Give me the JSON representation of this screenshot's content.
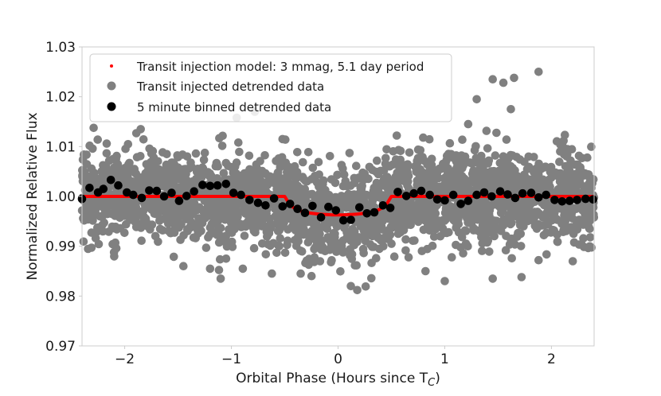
{
  "chart_data": {
    "type": "scatter",
    "title": "",
    "xlabel": "Orbital Phase (Hours since T",
    "xlabel_subscript": "C",
    "xlabel_suffix": ")",
    "ylabel": "Normalized Relative Flux",
    "xlim": [
      -2.4,
      2.4
    ],
    "ylim": [
      0.97,
      1.03
    ],
    "grid": false,
    "legend_position": "top-left",
    "x_ticks": [
      -2,
      -1,
      0,
      1,
      2
    ],
    "x_tick_labels": [
      "−2",
      "−1",
      "0",
      "1",
      "2"
    ],
    "y_ticks": [
      0.97,
      0.98,
      0.99,
      1.0,
      1.01,
      1.02,
      1.03
    ],
    "y_tick_labels": [
      "0.97",
      "0.98",
      "0.99",
      "1.00",
      "1.01",
      "1.02",
      "1.03"
    ],
    "series": [
      {
        "name": "Transit injection model: 3 mmag, 5.1 day period",
        "kind": "model-line",
        "color": "#ff0000",
        "x": [
          -2.4,
          -0.5,
          -0.46,
          -0.42,
          -0.38,
          -0.34,
          -0.3,
          -0.26,
          -0.22,
          -0.18,
          -0.14,
          -0.1,
          -0.05,
          0.0,
          0.05,
          0.1,
          0.14,
          0.18,
          0.22,
          0.26,
          0.3,
          0.34,
          0.38,
          0.42,
          0.46,
          0.5,
          2.4
        ],
        "y": [
          1.0,
          1.0,
          0.9986,
          0.9978,
          0.9973,
          0.997,
          0.9968,
          0.99665,
          0.99655,
          0.99645,
          0.9964,
          0.99635,
          0.9963,
          0.9963,
          0.9963,
          0.99635,
          0.9964,
          0.99645,
          0.99655,
          0.99665,
          0.9968,
          0.997,
          0.9973,
          0.9978,
          0.9986,
          1.0,
          1.0
        ]
      },
      {
        "name": "Transit injected detrended data",
        "kind": "scatter-cloud",
        "color": "#808080",
        "n_points": 2600,
        "noise_sd": 0.0045,
        "outliers": [
          {
            "x": 1.45,
            "y": 1.0235
          },
          {
            "x": 1.55,
            "y": 1.0228
          },
          {
            "x": 1.65,
            "y": 1.0238
          },
          {
            "x": 1.88,
            "y": 1.025
          },
          {
            "x": 1.3,
            "y": 1.0195
          },
          {
            "x": 1.62,
            "y": 1.0175
          },
          {
            "x": 1.22,
            "y": 1.0145
          },
          {
            "x": -0.95,
            "y": 1.0158
          },
          {
            "x": -0.78,
            "y": 1.017
          },
          {
            "x": -1.85,
            "y": 1.0135
          },
          {
            "x": -0.52,
            "y": 1.0115
          },
          {
            "x": 0.55,
            "y": 1.0122
          },
          {
            "x": 2.15,
            "y": 1.0095
          },
          {
            "x": -1.2,
            "y": 0.9855
          },
          {
            "x": -1.1,
            "y": 0.9835
          },
          {
            "x": -0.62,
            "y": 0.9845
          },
          {
            "x": 0.12,
            "y": 0.982
          },
          {
            "x": 0.18,
            "y": 0.9812
          },
          {
            "x": 1.0,
            "y": 0.983
          },
          {
            "x": 1.45,
            "y": 0.9835
          },
          {
            "x": 1.72,
            "y": 0.9838
          },
          {
            "x": 1.88,
            "y": 0.9872
          },
          {
            "x": -1.45,
            "y": 0.986
          },
          {
            "x": -2.1,
            "y": 0.9888
          },
          {
            "x": 2.2,
            "y": 0.987
          },
          {
            "x": 0.82,
            "y": 0.985
          },
          {
            "x": -0.35,
            "y": 0.9845
          }
        ]
      },
      {
        "name": "5 minute binned detrended data",
        "kind": "scatter",
        "color": "#000000",
        "x": [
          -2.4,
          -2.33,
          -2.25,
          -2.2,
          -2.13,
          -2.06,
          -1.98,
          -1.92,
          -1.84,
          -1.77,
          -1.7,
          -1.63,
          -1.56,
          -1.49,
          -1.42,
          -1.35,
          -1.27,
          -1.2,
          -1.13,
          -1.05,
          -0.98,
          -0.91,
          -0.83,
          -0.75,
          -0.68,
          -0.6,
          -0.52,
          -0.45,
          -0.38,
          -0.31,
          -0.24,
          -0.16,
          -0.09,
          -0.02,
          0.05,
          0.12,
          0.2,
          0.27,
          0.34,
          0.42,
          0.49,
          0.56,
          0.64,
          0.71,
          0.78,
          0.86,
          0.93,
          1.0,
          1.08,
          1.15,
          1.22,
          1.3,
          1.37,
          1.44,
          1.52,
          1.59,
          1.66,
          1.73,
          1.81,
          1.88,
          1.95,
          2.03,
          2.1,
          2.17,
          2.24,
          2.32,
          2.39
        ],
        "y": [
          0.9995,
          1.0017,
          1.0008,
          1.0015,
          1.0033,
          1.0022,
          1.0008,
          1.0003,
          0.9997,
          1.0012,
          1.0011,
          1.0,
          1.0007,
          0.9991,
          1.0001,
          1.001,
          1.0023,
          1.0021,
          1.0022,
          1.0025,
          1.0007,
          1.0003,
          0.9993,
          0.9987,
          0.9982,
          0.9996,
          0.998,
          0.9985,
          0.9975,
          0.9967,
          0.9981,
          0.9958,
          0.9979,
          0.9972,
          0.9952,
          0.9953,
          0.9978,
          0.9966,
          0.9968,
          0.9982,
          0.9977,
          1.0009,
          1.0001,
          1.0006,
          1.0011,
          1.0003,
          0.9994,
          0.9992,
          1.0003,
          0.9985,
          0.9991,
          1.0003,
          1.0008,
          1.0,
          1.001,
          1.0004,
          0.9997,
          1.0006,
          1.0007,
          0.9998,
          1.0003,
          0.9993,
          0.999,
          0.9991,
          0.9993,
          0.9995,
          0.9994
        ]
      }
    ]
  },
  "colors": {
    "model": "#ff0000",
    "data": "#808080",
    "binned": "#000000",
    "axes": "#cccccc"
  }
}
